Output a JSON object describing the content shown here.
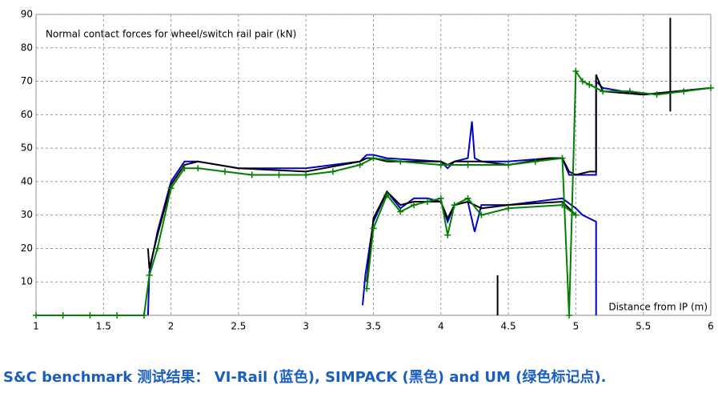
{
  "chart_data": {
    "type": "line",
    "title": "Normal contact forces for wheel/switch rail pair (kN)",
    "x_label": "Distance from IP (m)",
    "caption": "S&C benchmark 测试结果： VI-Rail (蓝色), SIMPACK (黑色) and UM (绿色标记点).",
    "xlim": [
      1,
      6
    ],
    "xticks": [
      1,
      1.5,
      2,
      2.5,
      3,
      3.5,
      4,
      4.5,
      5,
      5.5,
      6
    ],
    "ylim": [
      0,
      90
    ],
    "yticks": [
      10,
      20,
      30,
      40,
      50,
      60,
      70,
      80,
      90
    ],
    "grid": true,
    "series": [
      {
        "color": "#0000cc",
        "marker": "none",
        "x": [
          1.83,
          1.84,
          1.9,
          2.0,
          2.1,
          2.2,
          2.5,
          3.0,
          3.4,
          3.45,
          3.5,
          3.6,
          4.0,
          4.05,
          4.1,
          4.2,
          4.23,
          4.25,
          4.3,
          4.5,
          4.8,
          4.9,
          4.95,
          5.0,
          5.1,
          5.15,
          5.15,
          5.2,
          5.5,
          6.0
        ],
        "values": [
          0,
          13,
          25,
          40,
          46,
          46,
          44,
          44,
          46,
          48,
          48,
          47,
          46,
          44,
          46,
          47,
          58,
          47,
          46,
          46,
          47,
          47,
          42,
          42,
          42,
          42,
          70,
          68,
          66,
          68
        ]
      },
      {
        "color": "#0000cc",
        "marker": "none",
        "x": [
          3.42,
          3.44,
          3.5,
          3.6,
          3.7,
          3.8,
          3.9,
          4.0,
          4.05,
          4.1,
          4.2,
          4.25,
          4.3,
          4.5,
          4.9,
          5.0,
          5.05,
          5.15,
          5.15
        ],
        "values": [
          3,
          12,
          28,
          37,
          32,
          35,
          35,
          34,
          28,
          33,
          34,
          25,
          33,
          33,
          35,
          32,
          30,
          28,
          0
        ]
      },
      {
        "color": "#000000",
        "marker": "none",
        "x": [
          1.83,
          1.84,
          1.9,
          2.0,
          2.1,
          2.2,
          2.5,
          3.0,
          3.4,
          3.45,
          3.5,
          3.6,
          4.0,
          4.05,
          4.1,
          4.2,
          4.3,
          4.5,
          4.8,
          4.9,
          4.95,
          5.0,
          5.1,
          5.15,
          5.15,
          5.2,
          5.5,
          6.0
        ],
        "values": [
          20,
          14,
          24,
          39,
          45,
          46,
          44,
          43,
          46,
          47,
          47,
          46,
          46,
          45,
          46,
          46,
          46,
          45,
          47,
          47,
          43,
          42,
          43,
          43,
          72,
          67,
          66,
          68
        ]
      },
      {
        "color": "#000000",
        "marker": "none",
        "x": [
          3.45,
          3.5,
          3.6,
          3.7,
          3.8,
          3.9,
          4.0,
          4.05,
          4.1,
          4.2,
          4.3,
          4.5,
          4.9,
          5.0
        ],
        "values": [
          10,
          29,
          37,
          33,
          34,
          34,
          34,
          29,
          33,
          34,
          32,
          33,
          34,
          30
        ]
      },
      {
        "color": "#000000",
        "marker": "none",
        "x": [
          4.42,
          4.42,
          4.43,
          5.7,
          5.7
        ],
        "values": [
          12,
          0,
          null,
          61,
          89
        ]
      },
      {
        "color": "#008000",
        "marker": "plus",
        "x": [
          1.0,
          1.2,
          1.4,
          1.6,
          1.8,
          1.84,
          1.9,
          2.0,
          2.1,
          2.2,
          2.4,
          2.6,
          2.8,
          3.0,
          3.2,
          3.4,
          3.5,
          3.7,
          4.0,
          4.2,
          4.5,
          4.7,
          4.9,
          4.95,
          5.0,
          5.05,
          5.1,
          5.2,
          5.4,
          5.6,
          5.8,
          6.0
        ],
        "values": [
          0,
          0,
          0,
          0,
          0,
          12,
          20,
          38,
          44,
          44,
          43,
          42,
          42,
          42,
          43,
          45,
          47,
          46,
          45,
          45,
          45,
          46,
          47,
          0,
          73,
          70,
          69,
          67,
          67,
          66,
          67,
          68
        ]
      },
      {
        "color": "#008000",
        "marker": "plus",
        "x": [
          3.45,
          3.5,
          3.6,
          3.7,
          3.8,
          3.9,
          4.0,
          4.05,
          4.1,
          4.2,
          4.3,
          4.5,
          4.9,
          5.0
        ],
        "values": [
          8,
          26,
          36,
          31,
          33,
          34,
          35,
          24,
          33,
          35,
          30,
          32,
          33,
          30
        ]
      }
    ]
  }
}
